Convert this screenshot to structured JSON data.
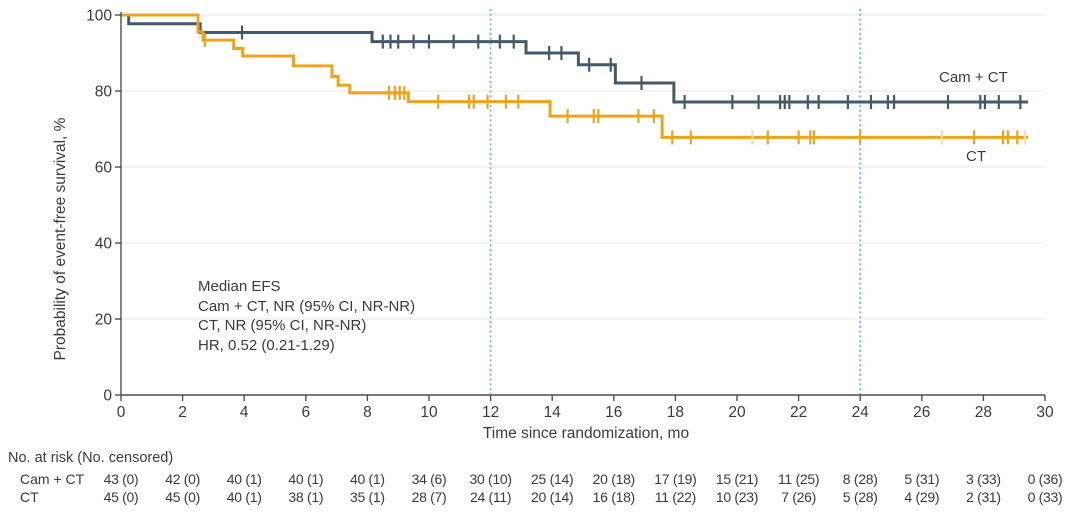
{
  "chart_data": {
    "type": "line",
    "subtype": "kaplan-meier-step",
    "title": "",
    "xlabel": "Time since randomization, mo",
    "ylabel": "Probability of event-free survival, %",
    "xlim": [
      0,
      30
    ],
    "ylim": [
      0,
      100
    ],
    "x_ticks": [
      0,
      2,
      4,
      6,
      8,
      10,
      12,
      14,
      16,
      18,
      20,
      22,
      24,
      26,
      28,
      30
    ],
    "y_ticks": [
      0,
      20,
      40,
      60,
      80,
      100
    ],
    "grid": "horizontal light gridlines at 20/40/60/80/100",
    "reference_lines": {
      "x": [
        12,
        24
      ],
      "style": "dotted-vertical"
    },
    "style": {
      "grid_color": "#e9e9e6",
      "axis_color": "#4e4e4e",
      "refline_color": "#3fc1e8",
      "text_color": "#3b3b3b",
      "censor_light_color": "#f6dda4"
    },
    "series": [
      {
        "id": "camct",
        "name": "Cam + CT",
        "color": "#46596a",
        "end": 29.45,
        "steps": [
          [
            0,
            100
          ],
          [
            0.25,
            97.7
          ],
          [
            2.57,
            95.4
          ],
          [
            8.15,
            93.0
          ],
          [
            13.15,
            90.0
          ],
          [
            14.85,
            86.9
          ],
          [
            16.05,
            82.1
          ],
          [
            17.95,
            77.1
          ]
        ],
        "censors": [
          [
            3.93,
            95.4
          ],
          [
            8.5,
            93.0
          ],
          [
            8.75,
            93.0
          ],
          [
            9.0,
            93.0
          ],
          [
            9.5,
            93.0
          ],
          [
            10.0,
            93.0
          ],
          [
            10.8,
            93.0
          ],
          [
            11.6,
            93.0
          ],
          [
            12.3,
            93.0
          ],
          [
            12.75,
            93.0
          ],
          [
            13.9,
            90.0
          ],
          [
            14.3,
            90.0
          ],
          [
            15.2,
            86.9
          ],
          [
            15.9,
            86.9
          ],
          [
            16.9,
            82.1
          ],
          [
            18.3,
            77.1
          ],
          [
            19.85,
            77.1
          ],
          [
            20.7,
            77.1
          ],
          [
            21.4,
            77.1
          ],
          [
            21.55,
            77.1
          ],
          [
            21.7,
            77.1
          ],
          [
            22.3,
            77.1
          ],
          [
            22.65,
            77.1
          ],
          [
            23.6,
            77.1
          ],
          [
            24.35,
            77.1
          ],
          [
            24.9,
            77.1
          ],
          [
            25.1,
            77.1
          ],
          [
            26.85,
            77.1
          ],
          [
            27.9,
            77.1
          ],
          [
            28.05,
            77.1
          ],
          [
            28.5,
            77.1
          ],
          [
            29.2,
            77.1
          ]
        ],
        "censors_light": []
      },
      {
        "id": "ct",
        "name": "CT",
        "color": "#eda321",
        "end": 29.45,
        "steps": [
          [
            0,
            100
          ],
          [
            2.5,
            95.6
          ],
          [
            2.66,
            93.4
          ],
          [
            3.66,
            91.2
          ],
          [
            3.95,
            89.2
          ],
          [
            5.6,
            86.6
          ],
          [
            6.85,
            83.8
          ],
          [
            7.05,
            81.5
          ],
          [
            7.43,
            79.5
          ],
          [
            9.33,
            77.2
          ],
          [
            13.93,
            73.4
          ],
          [
            17.57,
            67.8
          ]
        ],
        "censors": [
          [
            2.72,
            93.4
          ],
          [
            8.7,
            79.5
          ],
          [
            8.9,
            79.5
          ],
          [
            9.05,
            79.5
          ],
          [
            9.2,
            79.5
          ],
          [
            10.3,
            77.2
          ],
          [
            11.3,
            77.2
          ],
          [
            11.45,
            77.2
          ],
          [
            11.9,
            77.2
          ],
          [
            12.5,
            77.2
          ],
          [
            12.9,
            77.2
          ],
          [
            14.5,
            73.4
          ],
          [
            15.35,
            73.4
          ],
          [
            15.5,
            73.4
          ],
          [
            16.8,
            73.4
          ],
          [
            17.3,
            73.4
          ],
          [
            17.9,
            67.8
          ],
          [
            18.5,
            67.8
          ],
          [
            21.0,
            67.8
          ],
          [
            22.0,
            67.8
          ],
          [
            22.38,
            67.8
          ],
          [
            22.5,
            67.8
          ],
          [
            24.0,
            67.8
          ],
          [
            27.7,
            67.8
          ],
          [
            28.64,
            67.8
          ],
          [
            28.8,
            67.8
          ],
          [
            29.1,
            67.8
          ]
        ],
        "censors_light": [
          [
            20.5,
            67.8
          ],
          [
            26.65,
            67.8
          ],
          [
            29.35,
            67.8
          ]
        ]
      }
    ]
  },
  "annotation": {
    "lines": [
      "Median EFS",
      "Cam + CT, NR (95% CI, NR-NR)",
      "CT, NR (95% CI, NR-NR)",
      "HR, 0.52 (0.21-1.29)"
    ]
  },
  "risk_table": {
    "header": "No. at risk (No. censored)",
    "time_points": [
      0,
      2,
      4,
      6,
      8,
      10,
      12,
      14,
      16,
      18,
      20,
      22,
      24,
      26,
      28,
      30
    ],
    "rows": [
      {
        "label": "Cam + CT",
        "values": [
          "43 (0)",
          "42 (0)",
          "40 (1)",
          "40 (1)",
          "40 (1)",
          "34 (6)",
          "30 (10)",
          "25 (14)",
          "20 (18)",
          "17 (19)",
          "15 (21)",
          "11 (25)",
          "8 (28)",
          "5 (31)",
          "3 (33)",
          "0 (36)"
        ]
      },
      {
        "label": "CT",
        "values": [
          "45 (0)",
          "45 (0)",
          "40 (1)",
          "38 (1)",
          "35 (1)",
          "28 (7)",
          "24 (11)",
          "20 (14)",
          "16 (18)",
          "11 (22)",
          "10 (23)",
          "7 (26)",
          "5 (28)",
          "4 (29)",
          "2 (31)",
          "0 (33)"
        ]
      }
    ]
  }
}
